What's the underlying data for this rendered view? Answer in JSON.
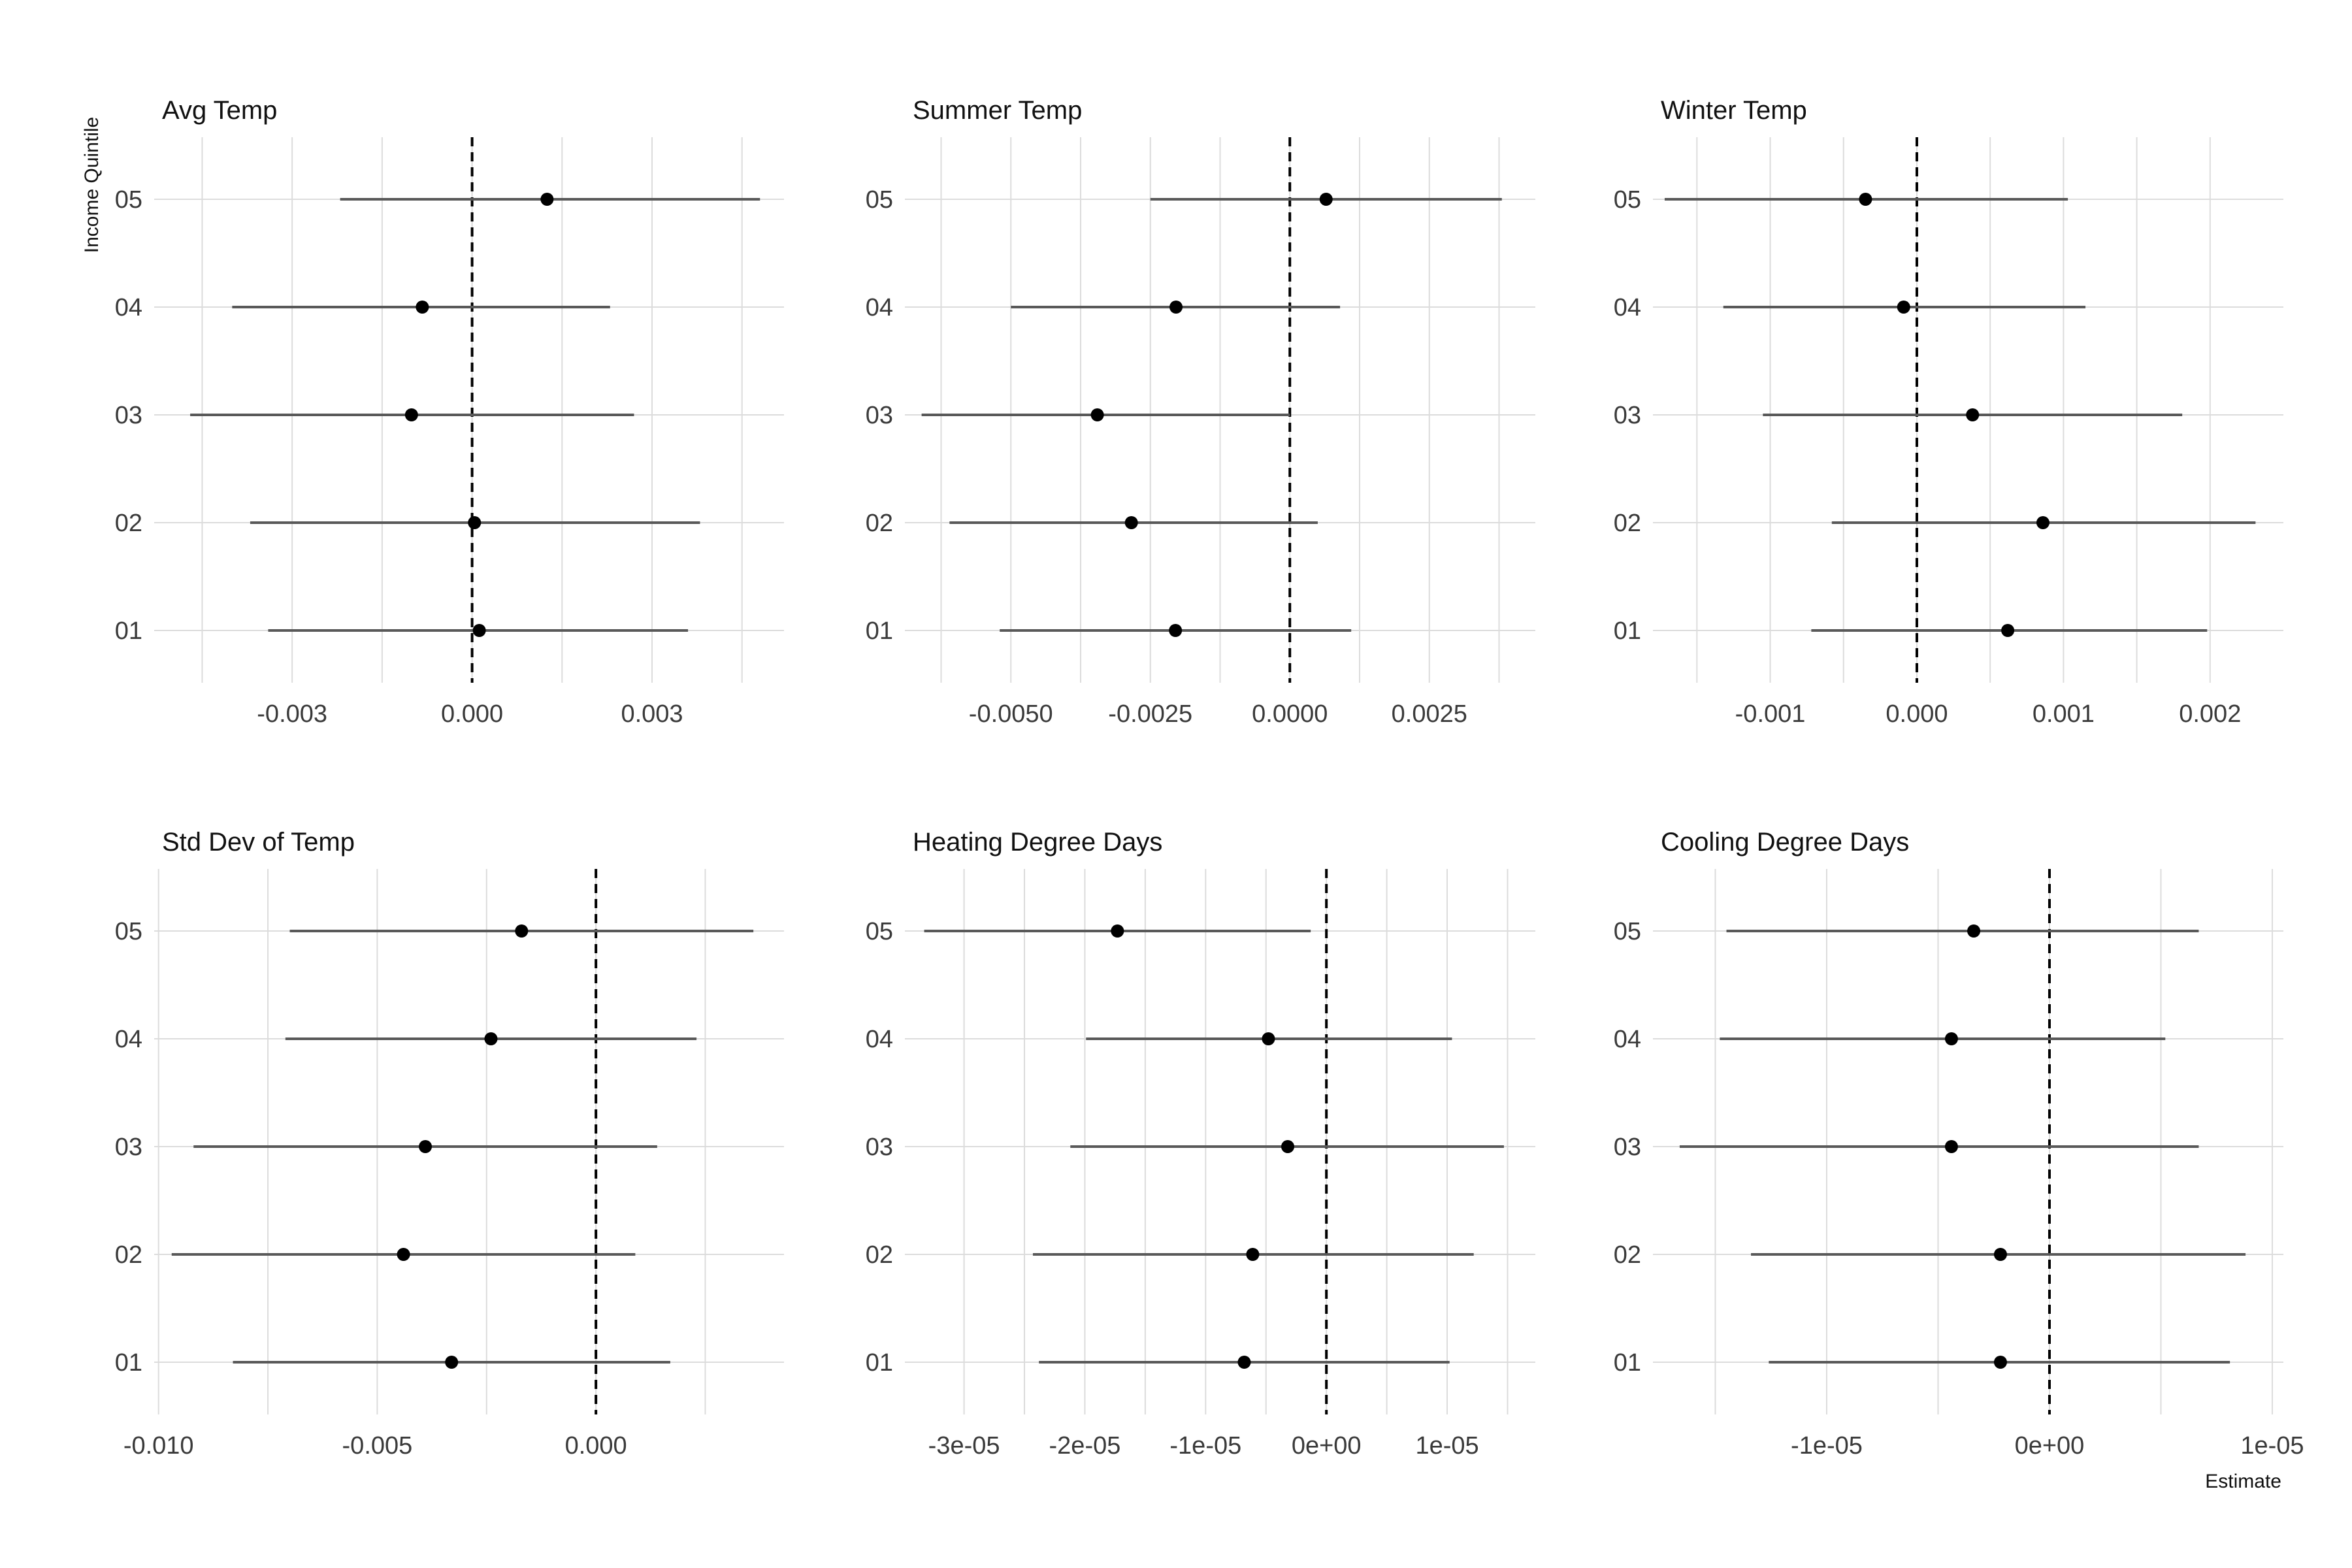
{
  "figure": {
    "y_axis_title": "Income Quintile",
    "x_axis_title": "Estimate"
  },
  "chart_data": [
    {
      "type": "forest",
      "title": "Avg Temp",
      "categories": [
        "01",
        "02",
        "03",
        "04",
        "05"
      ],
      "estimate": [
        0.00012,
        4e-05,
        -0.00101,
        -0.00083,
        0.00125
      ],
      "lower": [
        -0.0034,
        -0.0037,
        -0.0047,
        -0.004,
        -0.0022
      ],
      "upper": [
        0.0036,
        0.0038,
        0.0027,
        0.0023,
        0.0048
      ],
      "xlim": [
        -0.0053,
        0.0052
      ],
      "xticks": [
        -0.003,
        0.0,
        0.003
      ],
      "xtick_labels": [
        "-0.003",
        "0.000",
        "0.003"
      ],
      "zero_line": 0
    },
    {
      "type": "forest",
      "title": "Summer Temp",
      "categories": [
        "01",
        "02",
        "03",
        "04",
        "05"
      ],
      "estimate": [
        -0.00205,
        -0.00284,
        -0.00345,
        -0.00204,
        0.00065
      ],
      "lower": [
        -0.0052,
        -0.0061,
        -0.0066,
        -0.005,
        -0.0025
      ],
      "upper": [
        0.0011,
        0.0005,
        0.0,
        0.0009,
        0.0038
      ],
      "xlim": [
        -0.0069,
        0.0044
      ],
      "xticks": [
        -0.005,
        -0.0025,
        0.0,
        0.0025
      ],
      "xtick_labels": [
        "-0.0050",
        "-0.0025",
        "0.0000",
        "0.0025"
      ],
      "zero_line": 0
    },
    {
      "type": "forest",
      "title": "Winter Temp",
      "categories": [
        "01",
        "02",
        "03",
        "04",
        "05"
      ],
      "estimate": [
        0.00062,
        0.00086,
        0.00038,
        -9e-05,
        -0.00035
      ],
      "lower": [
        -0.00072,
        -0.00058,
        -0.00105,
        -0.00132,
        -0.00172
      ],
      "upper": [
        0.00198,
        0.00231,
        0.00181,
        0.00115,
        0.00103
      ],
      "xlim": [
        -0.0018,
        0.0025
      ],
      "xticks": [
        -0.001,
        0.0,
        0.001,
        0.002
      ],
      "xtick_labels": [
        "-0.001",
        "0.000",
        "0.001",
        "0.002"
      ],
      "zero_line": 0
    },
    {
      "type": "forest",
      "title": "Std Dev of Temp",
      "categories": [
        "01",
        "02",
        "03",
        "04",
        "05"
      ],
      "estimate": [
        -0.0033,
        -0.0044,
        -0.0039,
        -0.0024,
        -0.0017
      ],
      "lower": [
        -0.0083,
        -0.0097,
        -0.0092,
        -0.0071,
        -0.007
      ],
      "upper": [
        0.0017,
        0.0009,
        0.0014,
        0.0023,
        0.0036
      ],
      "xlim": [
        -0.0101,
        0.0043
      ],
      "xticks": [
        -0.01,
        -0.005,
        0.0
      ],
      "xtick_labels": [
        "-0.010",
        "-0.005",
        "0.000"
      ],
      "zero_line": 0
    },
    {
      "type": "forest",
      "title": "Heating Degree Days",
      "categories": [
        "01",
        "02",
        "03",
        "04",
        "05"
      ],
      "estimate": [
        -6.8e-06,
        -6.1e-06,
        -3.2e-06,
        -4.8e-06,
        -1.73e-05
      ],
      "lower": [
        -2.38e-05,
        -2.43e-05,
        -2.12e-05,
        -1.99e-05,
        -3.33e-05
      ],
      "upper": [
        1.02e-05,
        1.22e-05,
        1.47e-05,
        1.04e-05,
        -1.3e-06
      ],
      "xlim": [
        -3.49e-05,
        1.73e-05
      ],
      "xticks": [
        -3e-05,
        -2e-05,
        -1e-05,
        0,
        1e-05
      ],
      "xtick_labels": [
        "-3e-05",
        "-2e-05",
        "-1e-05",
        "0e+00",
        "1e-05"
      ],
      "zero_line": 0
    },
    {
      "type": "forest",
      "title": "Cooling Degree Days",
      "categories": [
        "01",
        "02",
        "03",
        "04",
        "05"
      ],
      "estimate": [
        -2.2e-06,
        -2.2e-06,
        -4.4e-06,
        -4.4e-06,
        -3.4e-06
      ],
      "lower": [
        -1.26e-05,
        -1.34e-05,
        -1.66e-05,
        -1.48e-05,
        -1.45e-05
      ],
      "upper": [
        8.1e-06,
        8.8e-06,
        6.7e-06,
        5.2e-06,
        6.7e-06
      ],
      "xlim": [
        -1.78e-05,
        1.05e-05
      ],
      "xticks": [
        -1e-05,
        0,
        1e-05
      ],
      "xtick_labels": [
        "-1e-05",
        "0e+00",
        "1e-05"
      ],
      "zero_line": 0
    }
  ]
}
